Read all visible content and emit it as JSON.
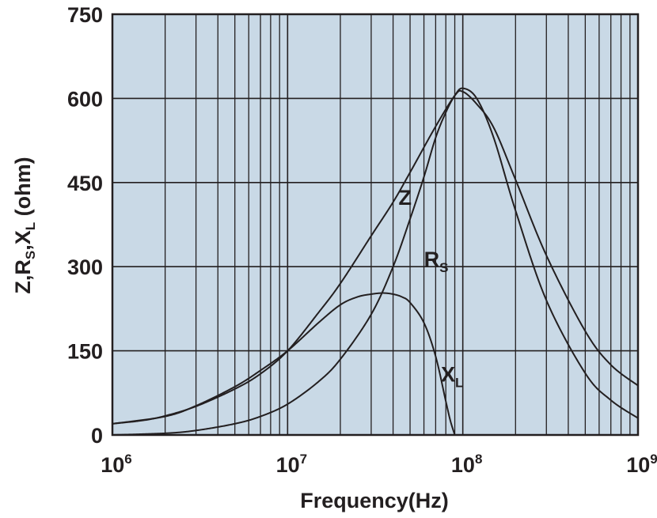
{
  "chart_data": {
    "type": "line",
    "xlabel": "Frequency(Hz)",
    "ylabel": "Z,R",
    "ylabel_parts": {
      "z_rs_prefix": "Z,R",
      "rs_sub": "S",
      "mid": ",X",
      "xl_sub": "L",
      "unit": " (ohm)"
    },
    "x_scale": "log",
    "xlim": [
      1000000,
      1000000000
    ],
    "ylim": [
      0,
      750
    ],
    "grid": true,
    "plot_background": "#c9d9e6",
    "line_color": "#231f20",
    "x_ticks": [
      {
        "value": 1000000,
        "base": "10",
        "exp": "6"
      },
      {
        "value": 10000000,
        "base": "10",
        "exp": "7"
      },
      {
        "value": 100000000,
        "base": "10",
        "exp": "8"
      },
      {
        "value": 1000000000,
        "base": "10",
        "exp": "9"
      }
    ],
    "y_ticks": [
      {
        "value": 0,
        "label": "0"
      },
      {
        "value": 150,
        "label": "150"
      },
      {
        "value": 300,
        "label": "300"
      },
      {
        "value": 450,
        "label": "450"
      },
      {
        "value": 600,
        "label": "600"
      },
      {
        "value": 750,
        "label": "750"
      }
    ],
    "series": [
      {
        "label_main": "Z",
        "label_sub": "",
        "label_at": {
          "x": 43000000,
          "y": 410
        },
        "x": [
          1000000,
          1500000,
          2000000,
          3000000,
          5000000,
          7000000,
          10000000,
          15000000,
          20000000,
          30000000,
          40000000,
          50000000,
          70000000,
          90000000,
          100000000,
          120000000,
          150000000,
          200000000,
          300000000,
          500000000,
          700000000,
          1000000000
        ],
        "y": [
          20,
          26,
          34,
          51,
          82,
          109,
          150,
          218,
          270,
          355,
          415,
          468,
          550,
          605,
          612,
          590,
          548,
          455,
          320,
          185,
          125,
          88
        ]
      },
      {
        "label_main": "R",
        "label_sub": "S",
        "label_at": {
          "x": 60000000,
          "y": 300
        },
        "x": [
          1000000,
          2000000,
          3000000,
          5000000,
          7000000,
          10000000,
          15000000,
          20000000,
          30000000,
          40000000,
          50000000,
          60000000,
          70000000,
          80000000,
          90000000,
          100000000,
          120000000,
          150000000,
          200000000,
          300000000,
          500000000,
          700000000,
          1000000000
        ],
        "y": [
          0,
          3,
          8,
          20,
          33,
          55,
          95,
          135,
          215,
          300,
          385,
          460,
          530,
          575,
          605,
          618,
          600,
          530,
          400,
          240,
          110,
          62,
          30
        ]
      },
      {
        "label_main": "X",
        "label_sub": "L",
        "label_at": {
          "x": 75000000,
          "y": 95
        },
        "x": [
          1000000,
          2000000,
          3000000,
          5000000,
          7000000,
          10000000,
          15000000,
          20000000,
          25000000,
          30000000,
          35000000,
          40000000,
          45000000,
          50000000,
          60000000,
          70000000,
          80000000,
          85000000,
          90000000
        ],
        "y": [
          20,
          33,
          52,
          86,
          115,
          150,
          200,
          232,
          246,
          251,
          253,
          251,
          246,
          236,
          200,
          140,
          60,
          25,
          0
        ]
      }
    ]
  }
}
